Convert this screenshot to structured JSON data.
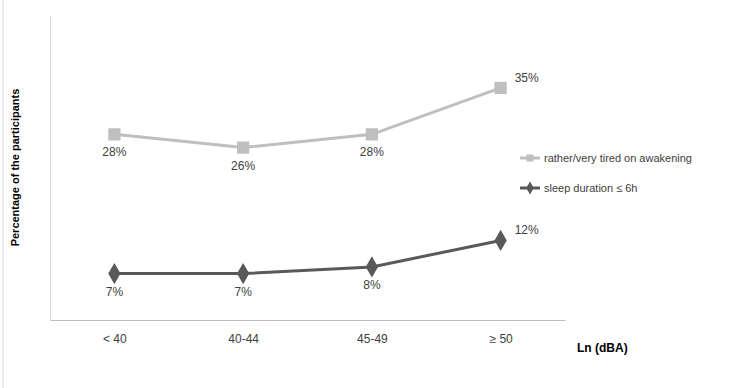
{
  "chart_data": {
    "type": "line",
    "x_label": "Ln (dBA)",
    "y_label": "Percentage of the participants",
    "categories": [
      "< 40",
      "40-44",
      "45-49",
      "≥ 50"
    ],
    "series": [
      {
        "name": "rather/very tired on awakening",
        "color": "#bfbfbf",
        "marker": "square",
        "line_style": "solid",
        "values": [
          28,
          26,
          28,
          35
        ],
        "value_labels": [
          "28%",
          "26%",
          "28%",
          "35%"
        ]
      },
      {
        "name": "sleep duration ≤ 6h",
        "color": "#595959",
        "marker": "diamond",
        "line_style": "solid",
        "values": [
          7,
          7,
          8,
          12
        ],
        "value_labels": [
          "7%",
          "7%",
          "8%",
          "12%"
        ]
      }
    ],
    "ylim": [
      0,
      46
    ],
    "yticks": [],
    "grid": false,
    "legend": "right",
    "data_labels": true,
    "tick_labels": "x"
  }
}
